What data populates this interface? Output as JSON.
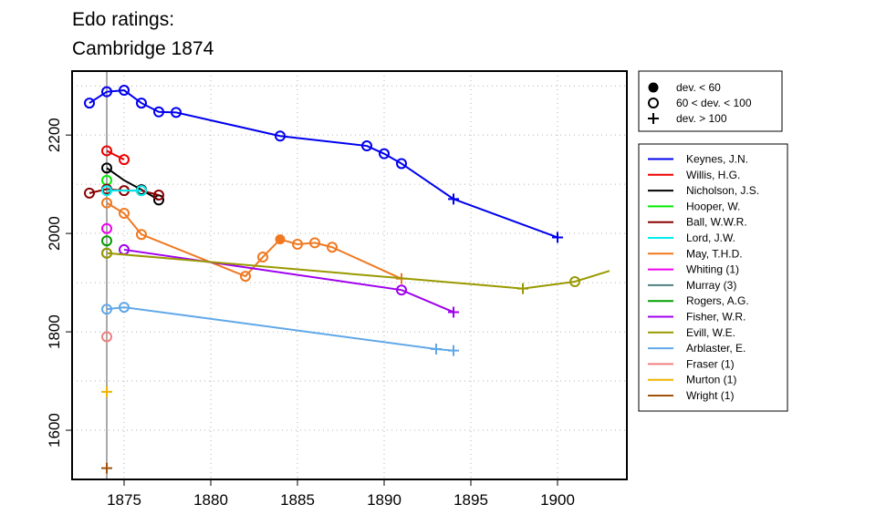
{
  "chart_data": {
    "type": "line",
    "title_lines": [
      "Edo ratings:",
      "Cambridge 1874"
    ],
    "xlim": [
      1872,
      1904
    ],
    "ylim": [
      1500,
      2330
    ],
    "x_ticks": [
      1875,
      1880,
      1885,
      1890,
      1895,
      1900
    ],
    "y_ticks": [
      1600,
      1800,
      2000,
      2200
    ],
    "grid": true,
    "reference_line_x": 1874,
    "marker_legend": [
      {
        "marker": "filled",
        "label": "dev. < 60"
      },
      {
        "marker": "open",
        "label": "60 < dev. < 100"
      },
      {
        "marker": "plus",
        "label": "dev. > 100"
      }
    ],
    "legend_placement": "right",
    "series": [
      {
        "name": "Keynes, J.N.",
        "color": "#0000ee",
        "points": [
          {
            "x": 1873,
            "y": 2265,
            "m": "open"
          },
          {
            "x": 1874,
            "y": 2288,
            "m": "open"
          },
          {
            "x": 1875,
            "y": 2291,
            "m": "open"
          },
          {
            "x": 1876,
            "y": 2265,
            "m": "open"
          },
          {
            "x": 1877,
            "y": 2247,
            "m": "open"
          },
          {
            "x": 1878,
            "y": 2246,
            "m": "open"
          },
          {
            "x": 1884,
            "y": 2198,
            "m": "open"
          },
          {
            "x": 1889,
            "y": 2178,
            "m": "open"
          },
          {
            "x": 1890,
            "y": 2162,
            "m": "open"
          },
          {
            "x": 1891,
            "y": 2142,
            "m": "open"
          },
          {
            "x": 1894,
            "y": 2070,
            "m": "plus"
          },
          {
            "x": 1900,
            "y": 1992,
            "m": "plus"
          }
        ]
      },
      {
        "name": "Willis, H.G.",
        "color": "#ee0000",
        "points": [
          {
            "x": 1874,
            "y": 2168,
            "m": "open"
          },
          {
            "x": 1875,
            "y": 2150,
            "m": "open"
          }
        ]
      },
      {
        "name": "Nicholson, J.S.",
        "color": "#000000",
        "points": [
          {
            "x": 1874,
            "y": 2133,
            "m": "open"
          },
          {
            "x": 1875,
            "y": 2108,
            "m": "none"
          },
          {
            "x": 1876,
            "y": 2089,
            "m": "open"
          },
          {
            "x": 1877,
            "y": 2068,
            "m": "open"
          }
        ]
      },
      {
        "name": "Hooper, W.",
        "color": "#00ee00",
        "points": [
          {
            "x": 1874,
            "y": 2108,
            "m": "open"
          }
        ]
      },
      {
        "name": "Ball, W.W.R.",
        "color": "#8b0000",
        "points": [
          {
            "x": 1873,
            "y": 2082,
            "m": "open"
          },
          {
            "x": 1874,
            "y": 2090,
            "m": "open"
          },
          {
            "x": 1875,
            "y": 2087,
            "m": "open"
          },
          {
            "x": 1876,
            "y": 2087,
            "m": "open"
          },
          {
            "x": 1877,
            "y": 2078,
            "m": "open"
          }
        ]
      },
      {
        "name": "Lord, J.W.",
        "color": "#00eeee",
        "points": [
          {
            "x": 1874,
            "y": 2087,
            "m": "open"
          },
          {
            "x": 1875,
            "y": 2087,
            "m": "none"
          },
          {
            "x": 1876,
            "y": 2087,
            "m": "open"
          }
        ]
      },
      {
        "name": "May, T.H.D.",
        "color": "#f07820",
        "points": [
          {
            "x": 1874,
            "y": 2062,
            "m": "open"
          },
          {
            "x": 1875,
            "y": 2041,
            "m": "open"
          },
          {
            "x": 1876,
            "y": 1998,
            "m": "open"
          },
          {
            "x": 1882,
            "y": 1913,
            "m": "open"
          },
          {
            "x": 1883,
            "y": 1952,
            "m": "open"
          },
          {
            "x": 1884,
            "y": 1988,
            "m": "filled"
          },
          {
            "x": 1885,
            "y": 1978,
            "m": "open"
          },
          {
            "x": 1886,
            "y": 1981,
            "m": "open"
          },
          {
            "x": 1887,
            "y": 1972,
            "m": "open"
          },
          {
            "x": 1891,
            "y": 1908,
            "m": "plus"
          }
        ]
      },
      {
        "name": "Whiting (1)",
        "color": "#ee00ee",
        "points": [
          {
            "x": 1874,
            "y": 2010,
            "m": "open"
          }
        ]
      },
      {
        "name": "Murray (3)",
        "color": "#4f7f7f",
        "points": [
          {
            "x": 1874,
            "y": 1960,
            "m": "open"
          }
        ]
      },
      {
        "name": "Rogers, A.G.",
        "color": "#00a000",
        "points": [
          {
            "x": 1874,
            "y": 1985,
            "m": "open"
          }
        ]
      },
      {
        "name": "Fisher, W.R.",
        "color": "#a000ee",
        "points": [
          {
            "x": 1875,
            "y": 1967,
            "m": "open"
          },
          {
            "x": 1891,
            "y": 1885,
            "m": "open"
          },
          {
            "x": 1894,
            "y": 1840,
            "m": "plus"
          }
        ]
      },
      {
        "name": "Evill, W.E.",
        "color": "#999900",
        "points": [
          {
            "x": 1874,
            "y": 1960,
            "m": "open"
          },
          {
            "x": 1898,
            "y": 1888,
            "m": "plus"
          },
          {
            "x": 1901,
            "y": 1902,
            "m": "open"
          },
          {
            "x": 1903,
            "y": 1924,
            "m": "none"
          }
        ]
      },
      {
        "name": "Arblaster, E.",
        "color": "#60a8e8",
        "points": [
          {
            "x": 1874,
            "y": 1846,
            "m": "open"
          },
          {
            "x": 1875,
            "y": 1850,
            "m": "open"
          },
          {
            "x": 1893,
            "y": 1765,
            "m": "plus"
          },
          {
            "x": 1894,
            "y": 1762,
            "m": "plus"
          }
        ]
      },
      {
        "name": "Fraser (1)",
        "color": "#f08080",
        "points": [
          {
            "x": 1874,
            "y": 1790,
            "m": "open"
          }
        ]
      },
      {
        "name": "Murton (1)",
        "color": "#eeb400",
        "points": [
          {
            "x": 1874,
            "y": 1678,
            "m": "plus"
          }
        ]
      },
      {
        "name": "Wright (1)",
        "color": "#a0520a",
        "points": [
          {
            "x": 1874,
            "y": 1523,
            "m": "plus"
          }
        ]
      }
    ]
  }
}
